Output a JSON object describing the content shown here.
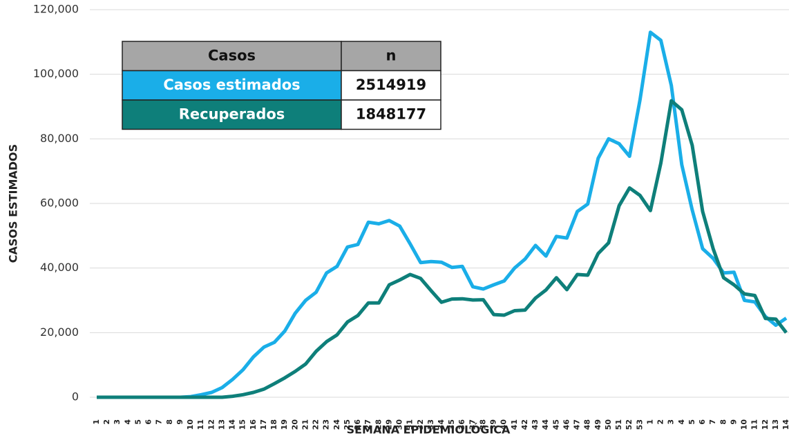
{
  "chart_data": {
    "type": "line",
    "xlabel": "SEMANA EPIDEMIOLÓGICA",
    "ylabel": "CASOS ESTIMADOS",
    "categories": [
      "1",
      "2",
      "3",
      "4",
      "5",
      "6",
      "7",
      "8",
      "9",
      "10",
      "11",
      "12",
      "13",
      "14",
      "15",
      "16",
      "17",
      "18",
      "19",
      "20",
      "21",
      "22",
      "23",
      "24",
      "25",
      "26",
      "27",
      "28",
      "29",
      "30",
      "31",
      "32",
      "33",
      "34",
      "35",
      "36",
      "37",
      "38",
      "39",
      "40",
      "41",
      "42",
      "43",
      "44",
      "45",
      "46",
      "47",
      "48",
      "49",
      "50",
      "51",
      "52",
      "53",
      "1",
      "2",
      "3",
      "4",
      "5",
      "6",
      "7",
      "8",
      "9",
      "10",
      "11",
      "12",
      "13",
      "14"
    ],
    "series": [
      {
        "name": "Casos estimados",
        "color": "#1aaee8",
        "values": [
          0,
          0,
          0,
          0,
          0,
          0,
          0,
          0,
          0,
          200,
          800,
          1500,
          3000,
          5500,
          8500,
          12500,
          15500,
          17000,
          20500,
          26000,
          30000,
          32500,
          38500,
          40500,
          46500,
          47300,
          54200,
          53700,
          54700,
          53000,
          47500,
          41700,
          42000,
          41800,
          40200,
          40500,
          34200,
          33500,
          34800,
          36000,
          40000,
          42800,
          47000,
          43700,
          49800,
          49300,
          57500,
          59800,
          74000,
          80000,
          78500,
          74600,
          92000,
          113000,
          110500,
          96500,
          72000,
          58000,
          46000,
          43000,
          38500,
          38700,
          30000,
          29500,
          25000,
          22300,
          24500
        ]
      },
      {
        "name": "Recuperados",
        "color": "#0e7f7a",
        "values": [
          0,
          0,
          0,
          0,
          0,
          0,
          0,
          0,
          0,
          0,
          0,
          0,
          0,
          300,
          800,
          1500,
          2500,
          4200,
          6000,
          8000,
          10300,
          14200,
          17200,
          19300,
          23300,
          25300,
          29200,
          29200,
          34800,
          36300,
          38000,
          36800,
          33000,
          29400,
          30400,
          30500,
          30100,
          30200,
          25600,
          25400,
          26800,
          27000,
          30700,
          33200,
          37000,
          33300,
          38000,
          37800,
          44500,
          47800,
          59300,
          64800,
          62500,
          57800,
          72500,
          91800,
          89000,
          78000,
          57500,
          46000,
          37000,
          34800,
          32000,
          31500,
          24400,
          24200,
          20000
        ]
      }
    ],
    "ylim": [
      0,
      120000
    ],
    "yticks": [
      0,
      {
        "value": 20000,
        "label": "20,000"
      },
      {
        "value": 40000,
        "label": "40,000"
      },
      {
        "value": 60000,
        "label": "60,000"
      },
      {
        "value": 80000,
        "label": "80,000"
      },
      {
        "value": 100000,
        "label": "100,000"
      },
      {
        "value": 120000,
        "label": "120,000"
      }
    ],
    "grid": true,
    "table": {
      "header": [
        "Casos",
        "n"
      ],
      "header_color": "#a6a6a6",
      "rows": [
        [
          "Casos estimados",
          "2514919"
        ],
        [
          "Recuperados",
          "1848177"
        ]
      ]
    }
  }
}
